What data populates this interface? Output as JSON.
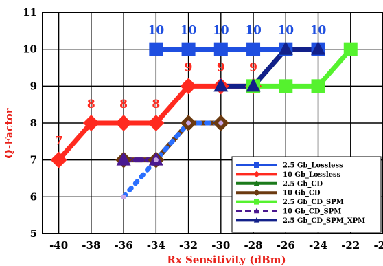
{
  "chart_data": {
    "type": "line",
    "xlabel": "Rx Sensitivity (dBm)",
    "ylabel": "Q-Factor",
    "xlim": [
      -41,
      -20
    ],
    "ylim": [
      5,
      11
    ],
    "x_ticks": [
      -40,
      -38,
      -36,
      -34,
      -32,
      -30,
      -28,
      -26,
      -24,
      -22,
      -20
    ],
    "y_ticks": [
      5,
      6,
      7,
      8,
      9,
      10,
      11
    ],
    "grid": true,
    "legend_position": "bottom-right",
    "series": [
      {
        "name": "2.5 Gb_Lossless",
        "color": "#1f4fe0",
        "marker": "square",
        "line_style": "solid",
        "x": [
          -34,
          -32,
          -30,
          -28,
          -26,
          -24
        ],
        "y": [
          10,
          10,
          10,
          10,
          10,
          10
        ]
      },
      {
        "name": "10 Gb_Lossless",
        "color": "#ff2a1f",
        "marker": "diamond",
        "line_style": "solid",
        "x": [
          -40,
          -38,
          -36,
          -34,
          -32,
          -30,
          -28
        ],
        "y": [
          7,
          8,
          8,
          8,
          9,
          9,
          9
        ]
      },
      {
        "name": "2.5 Gb_CD",
        "color": "#1b7a1b",
        "marker": "triangle",
        "line_style": "solid",
        "x": [
          -28,
          -26
        ],
        "y": [
          9,
          10
        ]
      },
      {
        "name": "10 Gb_CD",
        "color": "#6b3a10",
        "marker": "diamond",
        "line_style": "solid",
        "x": [
          -36,
          -34,
          -32,
          -30
        ],
        "y": [
          7,
          7,
          8,
          8
        ]
      },
      {
        "name": "2.5 Gb_CD_SPM",
        "color": "#55f22e",
        "marker": "square",
        "line_style": "solid",
        "x": [
          -28,
          -26,
          -24,
          -22
        ],
        "y": [
          9,
          9,
          9,
          10
        ]
      },
      {
        "name": "10 Gb_CD_SPM",
        "color": "#4a1890",
        "marker": "triangle",
        "line_style": "dashed",
        "x": [
          -36,
          -34
        ],
        "y": [
          7,
          7
        ]
      },
      {
        "name": "2.5 Gb_CD_SPM_XPM",
        "color": "#12208a",
        "marker": "triangle",
        "line_style": "solid",
        "x": [
          -30,
          -28,
          -26,
          -24
        ],
        "y": [
          9,
          9,
          10,
          10
        ]
      },
      {
        "name": "",
        "color": "#2a6fff",
        "marker": "circle",
        "line_style": "dotted",
        "x": [
          -36,
          -34,
          -32,
          -30
        ],
        "y": [
          6,
          7,
          8,
          8
        ]
      }
    ],
    "annotations": [
      {
        "text": "7",
        "x": -40,
        "y": 7,
        "color": "#ff2a1f"
      },
      {
        "text": "8",
        "x": -38,
        "y": 8,
        "color": "#ff2a1f"
      },
      {
        "text": "8",
        "x": -36,
        "y": 8,
        "color": "#ff2a1f"
      },
      {
        "text": "8",
        "x": -34,
        "y": 8,
        "color": "#ff2a1f"
      },
      {
        "text": "9",
        "x": -32,
        "y": 9,
        "color": "#ff2a1f"
      },
      {
        "text": "9",
        "x": -30,
        "y": 9,
        "color": "#ff2a1f"
      },
      {
        "text": "9",
        "x": -28,
        "y": 9,
        "color": "#ff2a1f"
      },
      {
        "text": "10",
        "x": -34,
        "y": 10,
        "color": "#1f4fe0"
      },
      {
        "text": "10",
        "x": -32,
        "y": 10,
        "color": "#1f4fe0"
      },
      {
        "text": "10",
        "x": -30,
        "y": 10,
        "color": "#1f4fe0"
      },
      {
        "text": "10",
        "x": -28,
        "y": 10,
        "color": "#1f4fe0"
      },
      {
        "text": "10",
        "x": -26,
        "y": 10,
        "color": "#1f4fe0"
      },
      {
        "text": "10",
        "x": -24,
        "y": 10,
        "color": "#1f4fe0"
      }
    ]
  }
}
